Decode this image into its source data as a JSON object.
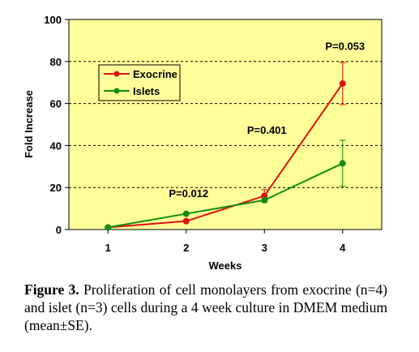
{
  "chart_data": {
    "type": "line",
    "xlabel": "Weeks",
    "ylabel": "Fold Increase",
    "x": [
      1,
      2,
      3,
      4
    ],
    "xticks": [
      "1",
      "2",
      "3",
      "4"
    ],
    "ylim": [
      0,
      100
    ],
    "yticks": [
      "0",
      "20",
      "40",
      "60",
      "80",
      "100"
    ],
    "grid": "horizontal dashed",
    "legend_position": "top-left",
    "series": [
      {
        "name": "Exocrine",
        "values": [
          1,
          4,
          16,
          69.5
        ],
        "errors": [
          0,
          0,
          3,
          10
        ],
        "color": "#e01010"
      },
      {
        "name": "Islets",
        "values": [
          1,
          7.5,
          14,
          31.5
        ],
        "errors": [
          0,
          0,
          0,
          11
        ],
        "color": "#138c13"
      }
    ],
    "annotations": [
      {
        "text": "P=0.012",
        "x": 2,
        "y": 15.5
      },
      {
        "text": "P=0.401",
        "x": 3,
        "y": 45.5
      },
      {
        "text": "P=0.053",
        "x": 4,
        "y": 85.5
      }
    ],
    "plot_background": "#ffff99"
  },
  "caption": {
    "lead": "Figure 3.",
    "text": " Proliferation of cell monolayers from exocrine (n=4) and islet (n=3) cells during a 4 week culture in DMEM medium (mean±SE)."
  }
}
